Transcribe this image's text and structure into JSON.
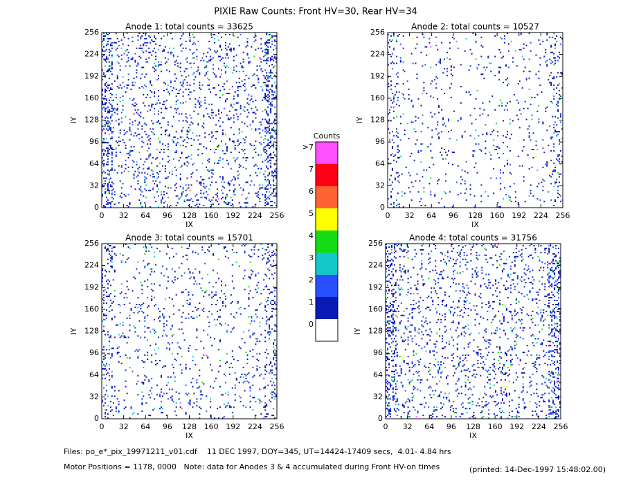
{
  "title": "PIXIE Raw Counts:  Front HV=30, Rear HV=34",
  "chart_data": [
    {
      "type": "heatmap",
      "title": "Anode 1: total counts = 33625",
      "x_label": "IX",
      "y_label": "IY",
      "xlim": [
        0,
        256
      ],
      "ylim": [
        0,
        256
      ],
      "xticks": [
        0,
        32,
        64,
        96,
        128,
        160,
        192,
        224,
        256
      ],
      "yticks": [
        0,
        32,
        64,
        96,
        128,
        160,
        192,
        224,
        256
      ]
    },
    {
      "type": "heatmap",
      "title": "Anode 2: total counts = 10527",
      "x_label": "IX",
      "y_label": "IY",
      "xlim": [
        0,
        256
      ],
      "ylim": [
        0,
        256
      ],
      "xticks": [
        0,
        32,
        64,
        96,
        128,
        160,
        192,
        224,
        256
      ],
      "yticks": [
        0,
        32,
        64,
        96,
        128,
        160,
        192,
        224,
        256
      ]
    },
    {
      "type": "heatmap",
      "title": "Anode 3: total counts = 15701",
      "x_label": "IX",
      "y_label": "IY",
      "xlim": [
        0,
        256
      ],
      "ylim": [
        0,
        256
      ],
      "xticks": [
        0,
        32,
        64,
        96,
        128,
        160,
        192,
        224,
        256
      ],
      "yticks": [
        0,
        32,
        64,
        96,
        128,
        160,
        192,
        224,
        256
      ]
    },
    {
      "type": "heatmap",
      "title": "Anode 4: total counts = 31756",
      "x_label": "IX",
      "y_label": "IY",
      "xlim": [
        0,
        256
      ],
      "ylim": [
        0,
        256
      ],
      "xticks": [
        0,
        32,
        64,
        96,
        128,
        160,
        192,
        224,
        256
      ],
      "yticks": [
        0,
        32,
        64,
        96,
        128,
        160,
        192,
        224,
        256
      ]
    }
  ],
  "colorbar": {
    "title": "Counts",
    "levels": [
      0,
      1,
      2,
      3,
      4,
      5,
      6,
      7,
      ">7"
    ],
    "colors": [
      "#ffffff",
      "#0a1ab4",
      "#2850ff",
      "#14c8c8",
      "#14dc14",
      "#ffff00",
      "#ff6432",
      "#ff0014",
      "#ff50ff"
    ]
  },
  "footer": [
    "Files: po_e*_pix_19971211_v01.cdf    11 DEC 1997, DOY=345, UT=14424-17409 secs,  4.01- 4.84 hrs",
    "Motor Positions = 1178, 0000   Note: data for Anodes 3 & 4 accumulated during Front HV-on times"
  ],
  "printed": "(printed: 14-Dec-1997 15:48:02.00)"
}
